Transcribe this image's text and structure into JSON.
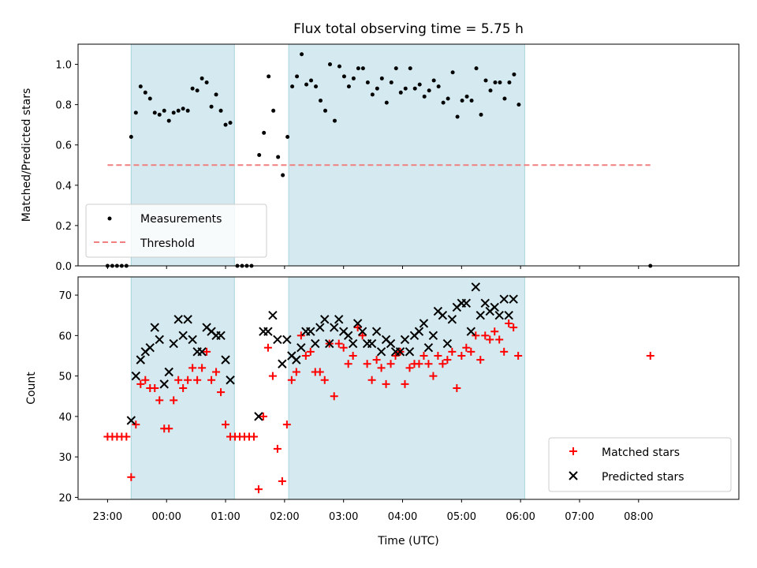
{
  "chart_data": [
    {
      "type": "scatter",
      "title": "Flux total observing time = 5.75 h",
      "xlabel": "",
      "ylabel": "Matched/Predicted stars",
      "ylim": [
        0,
        1.1
      ],
      "yticks": [
        "0.0",
        "0.2",
        "0.4",
        "0.6",
        "0.8",
        "1.0"
      ],
      "ytick_values": [
        0,
        0.2,
        0.4,
        0.6,
        0.8,
        1.0
      ],
      "xlim": [
        22.5,
        33.7
      ],
      "xtick_values": [
        23,
        24,
        25,
        26,
        27,
        28,
        29,
        30,
        31,
        32
      ],
      "shaded_ranges": [
        [
          23.4,
          25.15
        ],
        [
          26.07,
          30.07
        ]
      ],
      "shade_color": "#d4eaf0",
      "threshold": {
        "value": 0.5,
        "x_range": [
          23.0,
          32.2
        ],
        "color": "#f08080"
      },
      "legend": {
        "position": "lower-left",
        "entries": [
          "Measurements",
          "Threshold"
        ]
      },
      "series": [
        {
          "name": "Measurements",
          "color": "#000000",
          "points": [
            [
              23.0,
              0.0
            ],
            [
              23.08,
              0.0
            ],
            [
              23.16,
              0.0
            ],
            [
              23.24,
              0.0
            ],
            [
              23.32,
              0.0
            ],
            [
              23.4,
              0.64
            ],
            [
              23.48,
              0.76
            ],
            [
              23.56,
              0.89
            ],
            [
              23.64,
              0.86
            ],
            [
              23.72,
              0.83
            ],
            [
              23.8,
              0.76
            ],
            [
              23.88,
              0.75
            ],
            [
              23.96,
              0.77
            ],
            [
              24.04,
              0.72
            ],
            [
              24.12,
              0.76
            ],
            [
              24.2,
              0.77
            ],
            [
              24.28,
              0.78
            ],
            [
              24.36,
              0.77
            ],
            [
              24.44,
              0.88
            ],
            [
              24.52,
              0.87
            ],
            [
              24.6,
              0.93
            ],
            [
              24.68,
              0.91
            ],
            [
              24.76,
              0.79
            ],
            [
              24.84,
              0.85
            ],
            [
              24.92,
              0.77
            ],
            [
              25.0,
              0.7
            ],
            [
              25.08,
              0.71
            ],
            [
              25.2,
              0.0
            ],
            [
              25.28,
              0.0
            ],
            [
              25.36,
              0.0
            ],
            [
              25.44,
              0.0
            ],
            [
              25.57,
              0.55
            ],
            [
              25.65,
              0.66
            ],
            [
              25.73,
              0.94
            ],
            [
              25.81,
              0.77
            ],
            [
              25.89,
              0.54
            ],
            [
              25.97,
              0.45
            ],
            [
              26.05,
              0.64
            ],
            [
              26.13,
              0.89
            ],
            [
              26.21,
              0.94
            ],
            [
              26.29,
              1.05
            ],
            [
              26.37,
              0.9
            ],
            [
              26.45,
              0.92
            ],
            [
              26.53,
              0.89
            ],
            [
              26.61,
              0.82
            ],
            [
              26.69,
              0.77
            ],
            [
              26.77,
              1.0
            ],
            [
              26.85,
              0.72
            ],
            [
              26.93,
              0.99
            ],
            [
              27.01,
              0.94
            ],
            [
              27.09,
              0.89
            ],
            [
              27.17,
              0.93
            ],
            [
              27.25,
              0.98
            ],
            [
              27.33,
              0.98
            ],
            [
              27.41,
              0.91
            ],
            [
              27.49,
              0.85
            ],
            [
              27.57,
              0.88
            ],
            [
              27.65,
              0.93
            ],
            [
              27.73,
              0.81
            ],
            [
              27.81,
              0.91
            ],
            [
              27.89,
              0.98
            ],
            [
              27.97,
              0.86
            ],
            [
              28.05,
              0.88
            ],
            [
              28.13,
              0.98
            ],
            [
              28.21,
              0.88
            ],
            [
              28.29,
              0.9
            ],
            [
              28.37,
              0.84
            ],
            [
              28.45,
              0.87
            ],
            [
              28.53,
              0.92
            ],
            [
              28.61,
              0.89
            ],
            [
              28.69,
              0.81
            ],
            [
              28.77,
              0.83
            ],
            [
              28.85,
              0.96
            ],
            [
              28.93,
              0.74
            ],
            [
              29.01,
              0.82
            ],
            [
              29.09,
              0.84
            ],
            [
              29.17,
              0.82
            ],
            [
              29.25,
              0.98
            ],
            [
              29.33,
              0.75
            ],
            [
              29.41,
              0.92
            ],
            [
              29.49,
              0.87
            ],
            [
              29.57,
              0.91
            ],
            [
              29.65,
              0.91
            ],
            [
              29.73,
              0.83
            ],
            [
              29.81,
              0.91
            ],
            [
              29.89,
              0.95
            ],
            [
              29.97,
              0.8
            ],
            [
              32.2,
              0.0
            ]
          ]
        }
      ]
    },
    {
      "type": "scatter",
      "title": "",
      "xlabel": "Time (UTC)",
      "ylabel": "Count",
      "ylim": [
        19.5,
        74.5
      ],
      "yticks": [
        "20",
        "30",
        "40",
        "50",
        "60",
        "70"
      ],
      "ytick_values": [
        20,
        30,
        40,
        50,
        60,
        70
      ],
      "xlim": [
        22.5,
        33.7
      ],
      "xticks": [
        "23:00",
        "00:00",
        "01:00",
        "02:00",
        "03:00",
        "04:00",
        "05:00",
        "06:00",
        "07:00",
        "08:00"
      ],
      "xtick_values": [
        23,
        24,
        25,
        26,
        27,
        28,
        29,
        30,
        31,
        32
      ],
      "shaded_ranges": [
        [
          23.4,
          25.15
        ],
        [
          26.07,
          30.07
        ]
      ],
      "shade_color": "#d4eaf0",
      "legend": {
        "position": "lower-right",
        "entries": [
          "Matched stars",
          "Predicted stars"
        ]
      },
      "series": [
        {
          "name": "Matched stars",
          "color": "#ff0000",
          "marker": "plus",
          "points": [
            [
              23.0,
              35
            ],
            [
              23.08,
              35
            ],
            [
              23.16,
              35
            ],
            [
              23.24,
              35
            ],
            [
              23.32,
              35
            ],
            [
              23.4,
              25
            ],
            [
              23.48,
              38
            ],
            [
              23.56,
              48
            ],
            [
              23.64,
              49
            ],
            [
              23.72,
              47
            ],
            [
              23.8,
              47
            ],
            [
              23.88,
              44
            ],
            [
              23.96,
              37
            ],
            [
              24.04,
              37
            ],
            [
              24.12,
              44
            ],
            [
              24.2,
              49
            ],
            [
              24.28,
              47
            ],
            [
              24.36,
              49
            ],
            [
              24.44,
              52
            ],
            [
              24.52,
              49
            ],
            [
              24.6,
              52
            ],
            [
              24.68,
              56
            ],
            [
              24.76,
              49
            ],
            [
              24.84,
              51
            ],
            [
              24.92,
              46
            ],
            [
              25.0,
              38
            ],
            [
              25.08,
              35
            ],
            [
              25.16,
              35
            ],
            [
              25.24,
              35
            ],
            [
              25.32,
              35
            ],
            [
              25.4,
              35
            ],
            [
              25.48,
              35
            ],
            [
              25.56,
              22
            ],
            [
              25.64,
              40
            ],
            [
              25.72,
              57
            ],
            [
              25.8,
              50
            ],
            [
              25.88,
              32
            ],
            [
              25.96,
              24
            ],
            [
              26.04,
              38
            ],
            [
              26.12,
              49
            ],
            [
              26.2,
              51
            ],
            [
              26.28,
              60
            ],
            [
              26.36,
              55
            ],
            [
              26.44,
              56
            ],
            [
              26.52,
              51
            ],
            [
              26.6,
              51
            ],
            [
              26.68,
              49
            ],
            [
              26.76,
              58
            ],
            [
              26.84,
              45
            ],
            [
              26.92,
              58
            ],
            [
              27.0,
              57
            ],
            [
              27.08,
              53
            ],
            [
              27.16,
              55
            ],
            [
              27.24,
              62
            ],
            [
              27.32,
              60
            ],
            [
              27.4,
              53
            ],
            [
              27.48,
              49
            ],
            [
              27.56,
              54
            ],
            [
              27.64,
              52
            ],
            [
              27.72,
              48
            ],
            [
              27.8,
              53
            ],
            [
              27.88,
              55
            ],
            [
              27.96,
              56
            ],
            [
              28.04,
              48
            ],
            [
              28.12,
              52
            ],
            [
              28.2,
              53
            ],
            [
              28.28,
              53
            ],
            [
              28.36,
              55
            ],
            [
              28.44,
              53
            ],
            [
              28.52,
              50
            ],
            [
              28.6,
              55
            ],
            [
              28.68,
              53
            ],
            [
              28.76,
              54
            ],
            [
              28.84,
              56
            ],
            [
              28.92,
              47
            ],
            [
              29.0,
              55
            ],
            [
              29.08,
              57
            ],
            [
              29.16,
              56
            ],
            [
              29.24,
              60
            ],
            [
              29.32,
              54
            ],
            [
              29.4,
              60
            ],
            [
              29.48,
              59
            ],
            [
              29.56,
              61
            ],
            [
              29.64,
              59
            ],
            [
              29.72,
              56
            ],
            [
              29.8,
              63
            ],
            [
              29.88,
              62
            ],
            [
              29.96,
              55
            ],
            [
              32.2,
              55
            ]
          ]
        },
        {
          "name": "Predicted stars",
          "color": "#000000",
          "marker": "x",
          "points": [
            [
              23.4,
              39
            ],
            [
              23.48,
              50
            ],
            [
              23.56,
              54
            ],
            [
              23.64,
              56
            ],
            [
              23.72,
              57
            ],
            [
              23.8,
              62
            ],
            [
              23.88,
              59
            ],
            [
              23.96,
              48
            ],
            [
              24.04,
              51
            ],
            [
              24.12,
              58
            ],
            [
              24.2,
              64
            ],
            [
              24.28,
              60
            ],
            [
              24.36,
              64
            ],
            [
              24.44,
              59
            ],
            [
              24.52,
              56
            ],
            [
              24.6,
              56
            ],
            [
              24.68,
              62
            ],
            [
              24.76,
              61
            ],
            [
              24.84,
              60
            ],
            [
              24.92,
              60
            ],
            [
              25.0,
              54
            ],
            [
              25.08,
              49
            ],
            [
              25.56,
              40
            ],
            [
              25.64,
              61
            ],
            [
              25.72,
              61
            ],
            [
              25.8,
              65
            ],
            [
              25.88,
              59
            ],
            [
              25.96,
              53
            ],
            [
              26.04,
              59
            ],
            [
              26.12,
              55
            ],
            [
              26.2,
              54
            ],
            [
              26.28,
              57
            ],
            [
              26.36,
              61
            ],
            [
              26.44,
              61
            ],
            [
              26.52,
              58
            ],
            [
              26.6,
              62
            ],
            [
              26.68,
              64
            ],
            [
              26.76,
              58
            ],
            [
              26.84,
              62
            ],
            [
              26.92,
              64
            ],
            [
              27.0,
              61
            ],
            [
              27.08,
              60
            ],
            [
              27.16,
              58
            ],
            [
              27.24,
              63
            ],
            [
              27.32,
              61
            ],
            [
              27.4,
              58
            ],
            [
              27.48,
              58
            ],
            [
              27.56,
              61
            ],
            [
              27.64,
              56
            ],
            [
              27.72,
              59
            ],
            [
              27.8,
              58
            ],
            [
              27.88,
              56
            ],
            [
              27.96,
              56
            ],
            [
              28.04,
              59
            ],
            [
              28.12,
              56
            ],
            [
              28.2,
              60
            ],
            [
              28.28,
              61
            ],
            [
              28.36,
              63
            ],
            [
              28.44,
              57
            ],
            [
              28.52,
              60
            ],
            [
              28.6,
              66
            ],
            [
              28.68,
              65
            ],
            [
              28.76,
              58
            ],
            [
              28.84,
              64
            ],
            [
              28.92,
              67
            ],
            [
              29.0,
              68
            ],
            [
              29.08,
              68
            ],
            [
              29.16,
              61
            ],
            [
              29.24,
              72
            ],
            [
              29.32,
              65
            ],
            [
              29.4,
              68
            ],
            [
              29.48,
              66
            ],
            [
              29.56,
              67
            ],
            [
              29.64,
              65
            ],
            [
              29.72,
              69
            ],
            [
              29.8,
              65
            ],
            [
              29.88,
              69
            ]
          ]
        }
      ]
    }
  ]
}
